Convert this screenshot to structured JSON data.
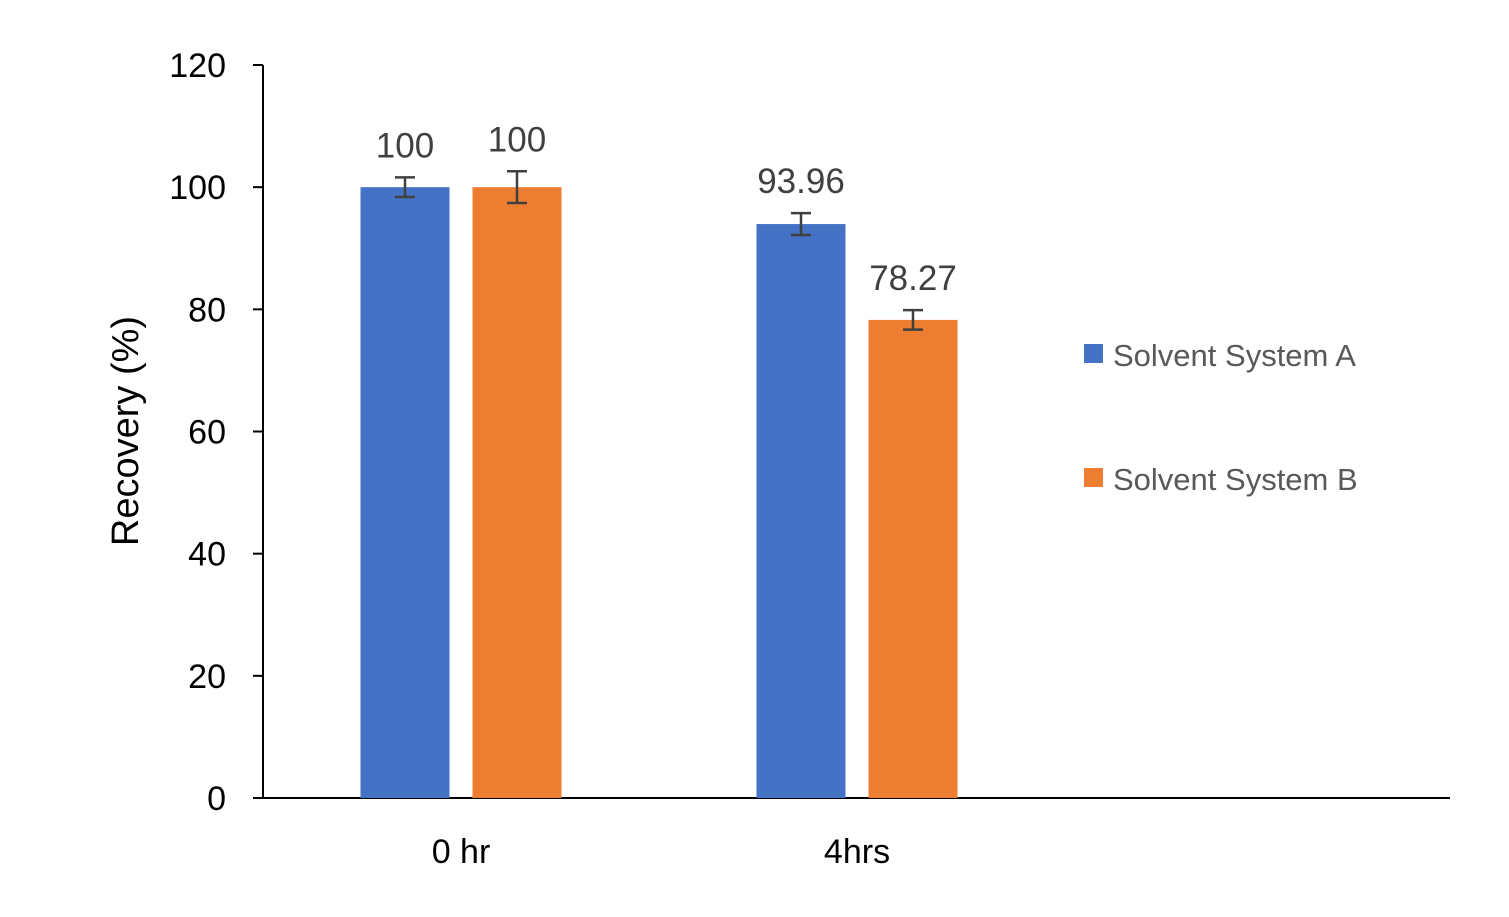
{
  "chart_data": {
    "type": "bar",
    "title": "",
    "xlabel": "",
    "ylabel": "Recovery (%)",
    "ylim": [
      0,
      120
    ],
    "yticks": [
      "0",
      "20",
      "40",
      "60",
      "80",
      "100",
      "120"
    ],
    "categories": [
      "0 hr",
      "4hrs"
    ],
    "series": [
      {
        "name": "Solvent System A",
        "color": "#4472C4",
        "values": [
          100,
          93.96
        ],
        "errors": [
          1.6,
          1.8
        ],
        "labels": [
          "100",
          "93.96"
        ]
      },
      {
        "name": "Solvent System B",
        "color": "#ED7D31",
        "values": [
          100,
          78.27
        ],
        "errors": [
          2.6,
          1.6
        ],
        "labels": [
          "100",
          "78.27"
        ]
      }
    ],
    "legend_position": "right",
    "grid": false
  }
}
